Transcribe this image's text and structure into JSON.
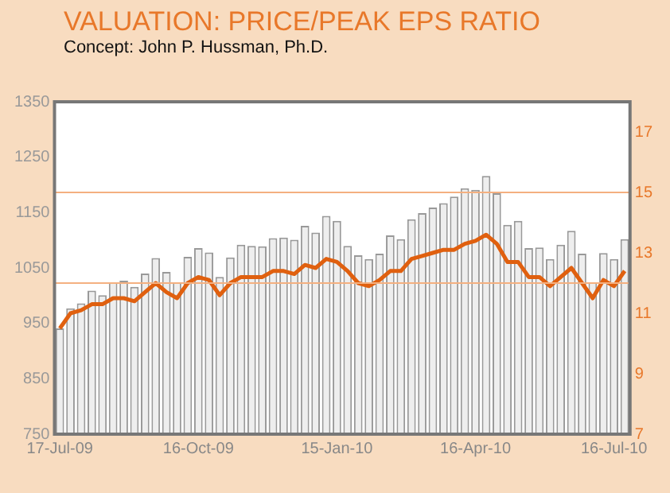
{
  "chart_data": {
    "type": "bar",
    "title": "VALUATION: PRICE/PEAK EPS RATIO",
    "subtitle": "Concept: John P. Hussman, Ph.D.",
    "categories": [
      "17-Jul-09",
      null,
      null,
      null,
      null,
      null,
      null,
      null,
      null,
      null,
      null,
      null,
      null,
      "16-Oct-09",
      null,
      null,
      null,
      null,
      null,
      null,
      null,
      null,
      null,
      null,
      null,
      null,
      "15-Jan-10",
      null,
      null,
      null,
      null,
      null,
      null,
      null,
      null,
      null,
      null,
      null,
      null,
      "16-Apr-10",
      null,
      null,
      null,
      null,
      null,
      null,
      null,
      null,
      null,
      null,
      null,
      null,
      "16-Jul-10",
      null
    ],
    "series": [
      {
        "color": "#eeeeee",
        "values": [
          941,
          977,
          986,
          1009,
          1001,
          1024,
          1027,
          1016,
          1040,
          1068,
          1043,
          1024,
          1070,
          1086,
          1078,
          1034,
          1069,
          1092,
          1090,
          1089,
          1104,
          1105,
          1101,
          1126,
          1114,
          1144,
          1135,
          1090,
          1073,
          1066,
          1076,
          1109,
          1102,
          1138,
          1149,
          1159,
          1167,
          1179,
          1194,
          1191,
          1216,
          1185,
          1128,
          1135,
          1086,
          1087,
          1066,
          1092,
          1117,
          1076,
          1024,
          1077,
          1066,
          1102
        ]
      },
      {
        "type": "line",
        "axis": "y2",
        "color": "#e0600f",
        "values": [
          10.5,
          11.0,
          11.1,
          11.3,
          11.3,
          11.5,
          11.5,
          11.4,
          11.7,
          12.0,
          11.7,
          11.5,
          12.0,
          12.2,
          12.1,
          11.6,
          12.0,
          12.2,
          12.2,
          12.2,
          12.4,
          12.4,
          12.3,
          12.6,
          12.5,
          12.8,
          12.7,
          12.4,
          12.0,
          11.9,
          12.1,
          12.4,
          12.4,
          12.8,
          12.9,
          13.0,
          13.1,
          13.1,
          13.3,
          13.4,
          13.6,
          13.3,
          12.7,
          12.7,
          12.2,
          12.2,
          11.9,
          12.2,
          12.5,
          12.0,
          11.5,
          12.1,
          11.9,
          12.4
        ]
      }
    ],
    "ylim": [
      750,
      1350
    ],
    "yticks": [
      750,
      850,
      950,
      1050,
      1150,
      1250,
      1350
    ],
    "y2lim": [
      7,
      18
    ],
    "y2ticks": [
      7,
      9,
      11,
      13,
      15,
      17
    ],
    "ref_lines": [
      {
        "axis": "y2",
        "value": 15,
        "color": "#f4b080"
      },
      {
        "axis": "y2",
        "value": 12,
        "color": "#f4b080"
      }
    ],
    "legend": false,
    "marker": "none"
  }
}
